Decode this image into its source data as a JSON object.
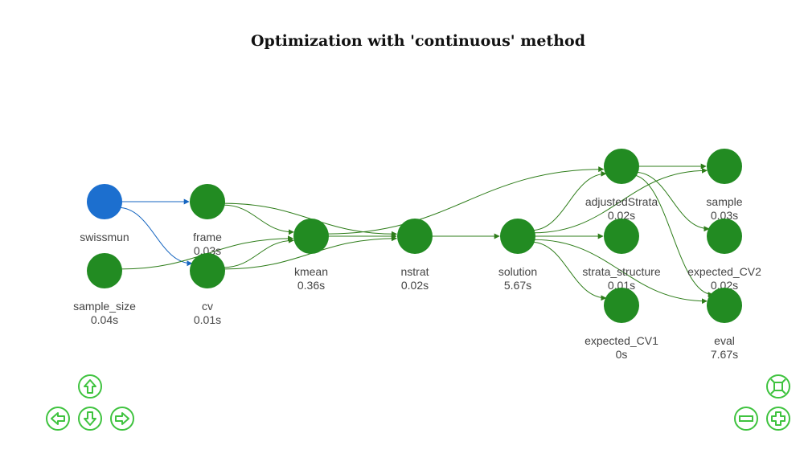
{
  "title": "Optimization with 'continuous' method",
  "colors": {
    "node_input": "#1c6fcf",
    "node_target": "#228b22",
    "edge_input": "#1565c0",
    "edge_target": "#2e7d1a",
    "nav": "#3fc33f"
  },
  "nodes": [
    {
      "id": "swissmun",
      "name": "swissmun",
      "time": "",
      "type": "input"
    },
    {
      "id": "sample_size",
      "name": "sample_size",
      "time": "0.04s",
      "type": "target"
    },
    {
      "id": "frame",
      "name": "frame",
      "time": "0.03s",
      "type": "target"
    },
    {
      "id": "cv",
      "name": "cv",
      "time": "0.01s",
      "type": "target"
    },
    {
      "id": "kmean",
      "name": "kmean",
      "time": "0.36s",
      "type": "target"
    },
    {
      "id": "nstrat",
      "name": "nstrat",
      "time": "0.02s",
      "type": "target"
    },
    {
      "id": "solution",
      "name": "solution",
      "time": "5.67s",
      "type": "target"
    },
    {
      "id": "adjustedStrata",
      "name": "adjustedStrata",
      "time": "0.02s",
      "type": "target"
    },
    {
      "id": "strata_structure",
      "name": "strata_structure",
      "time": "0.01s",
      "type": "target"
    },
    {
      "id": "expected_CV1",
      "name": "expected_CV1",
      "time": "0s",
      "type": "target"
    },
    {
      "id": "sample",
      "name": "sample",
      "time": "0.03s",
      "type": "target"
    },
    {
      "id": "expected_CV2",
      "name": "expected_CV2",
      "time": "0.02s",
      "type": "target"
    },
    {
      "id": "eval",
      "name": "eval",
      "time": "7.67s",
      "type": "target"
    }
  ],
  "edges": [
    [
      "swissmun",
      "frame"
    ],
    [
      "swissmun",
      "cv"
    ],
    [
      "sample_size",
      "kmean"
    ],
    [
      "frame",
      "kmean"
    ],
    [
      "frame",
      "nstrat"
    ],
    [
      "cv",
      "kmean"
    ],
    [
      "cv",
      "nstrat"
    ],
    [
      "kmean",
      "nstrat"
    ],
    [
      "kmean",
      "adjustedStrata"
    ],
    [
      "nstrat",
      "solution"
    ],
    [
      "solution",
      "adjustedStrata"
    ],
    [
      "solution",
      "strata_structure"
    ],
    [
      "solution",
      "expected_CV1"
    ],
    [
      "solution",
      "sample"
    ],
    [
      "solution",
      "eval"
    ],
    [
      "adjustedStrata",
      "sample"
    ],
    [
      "adjustedStrata",
      "expected_CV2"
    ],
    [
      "adjustedStrata",
      "eval"
    ]
  ],
  "navigation": {
    "up": "up-arrow-icon",
    "left": "left-arrow-icon",
    "down": "down-arrow-icon",
    "right": "right-arrow-icon",
    "fit": "fit-screen-icon",
    "zoom_out": "zoom-out-icon",
    "zoom_in": "zoom-in-icon"
  }
}
